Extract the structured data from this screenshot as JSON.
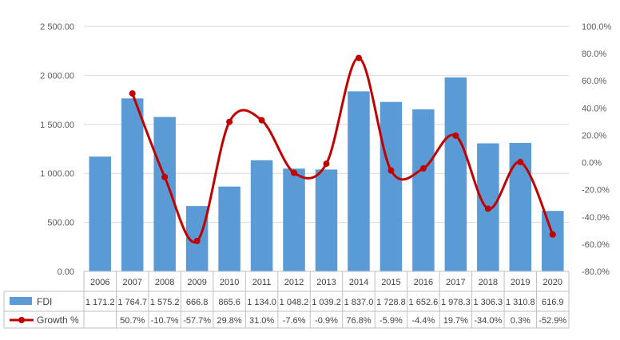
{
  "chart_data": {
    "type": "bar",
    "categories": [
      "2006",
      "2007",
      "2008",
      "2009",
      "2010",
      "2011",
      "2012",
      "2013",
      "2014",
      "2015",
      "2016",
      "2017",
      "2018",
      "2019",
      "2020"
    ],
    "series": [
      {
        "name": "FDI",
        "type": "bar",
        "axis": "left",
        "values": [
          1171.2,
          1764.7,
          1575.2,
          666.8,
          865.6,
          1134.0,
          1048.2,
          1039.2,
          1837.0,
          1728.8,
          1652.6,
          1978.3,
          1306.3,
          1310.8,
          616.9
        ],
        "labels": [
          "1 171.2",
          "1 764.7",
          "1 575.2",
          "666.8",
          "865.6",
          "1 134.0",
          "1 048.2",
          "1 039.2",
          "1 837.0",
          "1 728.8",
          "1 652.6",
          "1 978.3",
          "1 306.3",
          "1 310.8",
          "616.9"
        ],
        "color": "#5b9bd5"
      },
      {
        "name": "Growth %",
        "type": "line",
        "smooth": true,
        "axis": "right",
        "values": [
          null,
          50.7,
          -10.7,
          -57.7,
          29.8,
          31.0,
          -7.6,
          -0.9,
          76.8,
          -5.9,
          -4.4,
          19.7,
          -34.0,
          0.3,
          -52.9
        ],
        "labels": [
          "",
          "50.7%",
          "-10.7%",
          "-57.7%",
          "29.8%",
          "31.0%",
          "-7.6%",
          "-0.9%",
          "76.8%",
          "-5.9%",
          "-4.4%",
          "19.7%",
          "-34.0%",
          "0.3%",
          "-52.9%"
        ],
        "color": "#c00000"
      }
    ],
    "y_left": {
      "ylim": [
        0,
        2500
      ],
      "ticks": [
        0,
        500,
        1000,
        1500,
        2000,
        2500
      ],
      "tick_labels": [
        "0.00",
        "500.00",
        "1 000.00",
        "1 500.00",
        "2 000.00",
        "2 500.00"
      ]
    },
    "y_right": {
      "ylim": [
        -80,
        100
      ],
      "ticks": [
        -80,
        -60,
        -40,
        -20,
        0,
        20,
        40,
        60,
        80,
        100
      ],
      "tick_labels": [
        "-80.0%",
        "-60.0%",
        "-40.0%",
        "-20.0%",
        "0.0%",
        "20.0%",
        "40.0%",
        "60.0%",
        "80.0%",
        "100.0%"
      ]
    },
    "grid": true,
    "legend": "data-table"
  }
}
